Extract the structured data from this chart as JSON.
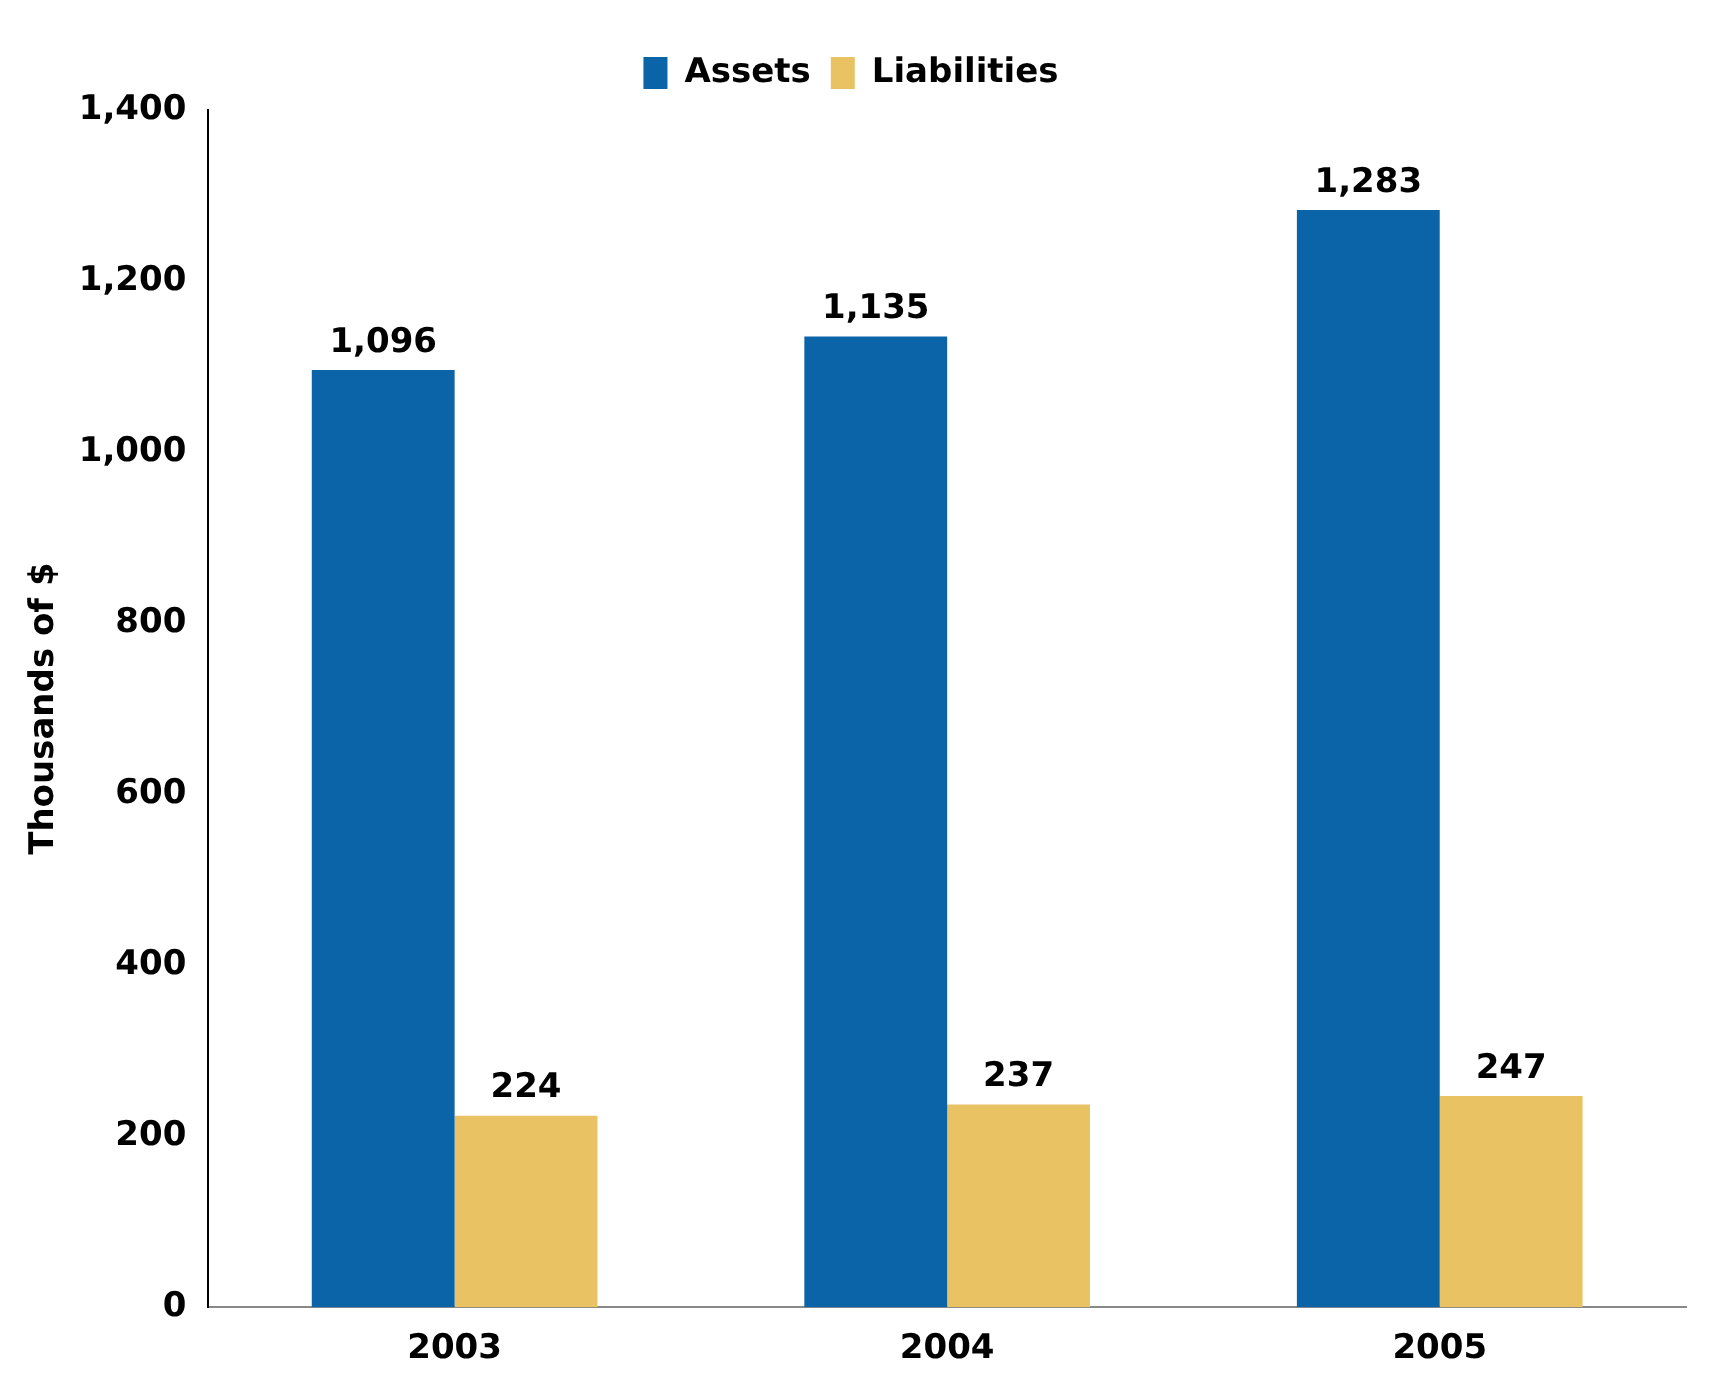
{
  "chart_data": {
    "type": "bar",
    "ylabel": "Thousands of $",
    "categories": [
      "2003",
      "2004",
      "2005"
    ],
    "series": [
      {
        "name": "Assets",
        "color": "#0b63a8",
        "values": [
          1096,
          1135,
          1283
        ],
        "value_labels": [
          "1,096",
          "1,135",
          "1,283"
        ]
      },
      {
        "name": "Liabilities",
        "color": "#e9c263",
        "values": [
          224,
          237,
          247
        ],
        "value_labels": [
          "224",
          "237",
          "247"
        ]
      }
    ],
    "ylim": [
      0,
      1400
    ],
    "yticks": [
      0,
      200,
      400,
      600,
      800,
      {
        "value": 1000,
        "label": "1,000"
      },
      {
        "value": 1200,
        "label": "1,200"
      },
      {
        "value": 1400,
        "label": "1,400"
      }
    ],
    "legend": "top"
  }
}
